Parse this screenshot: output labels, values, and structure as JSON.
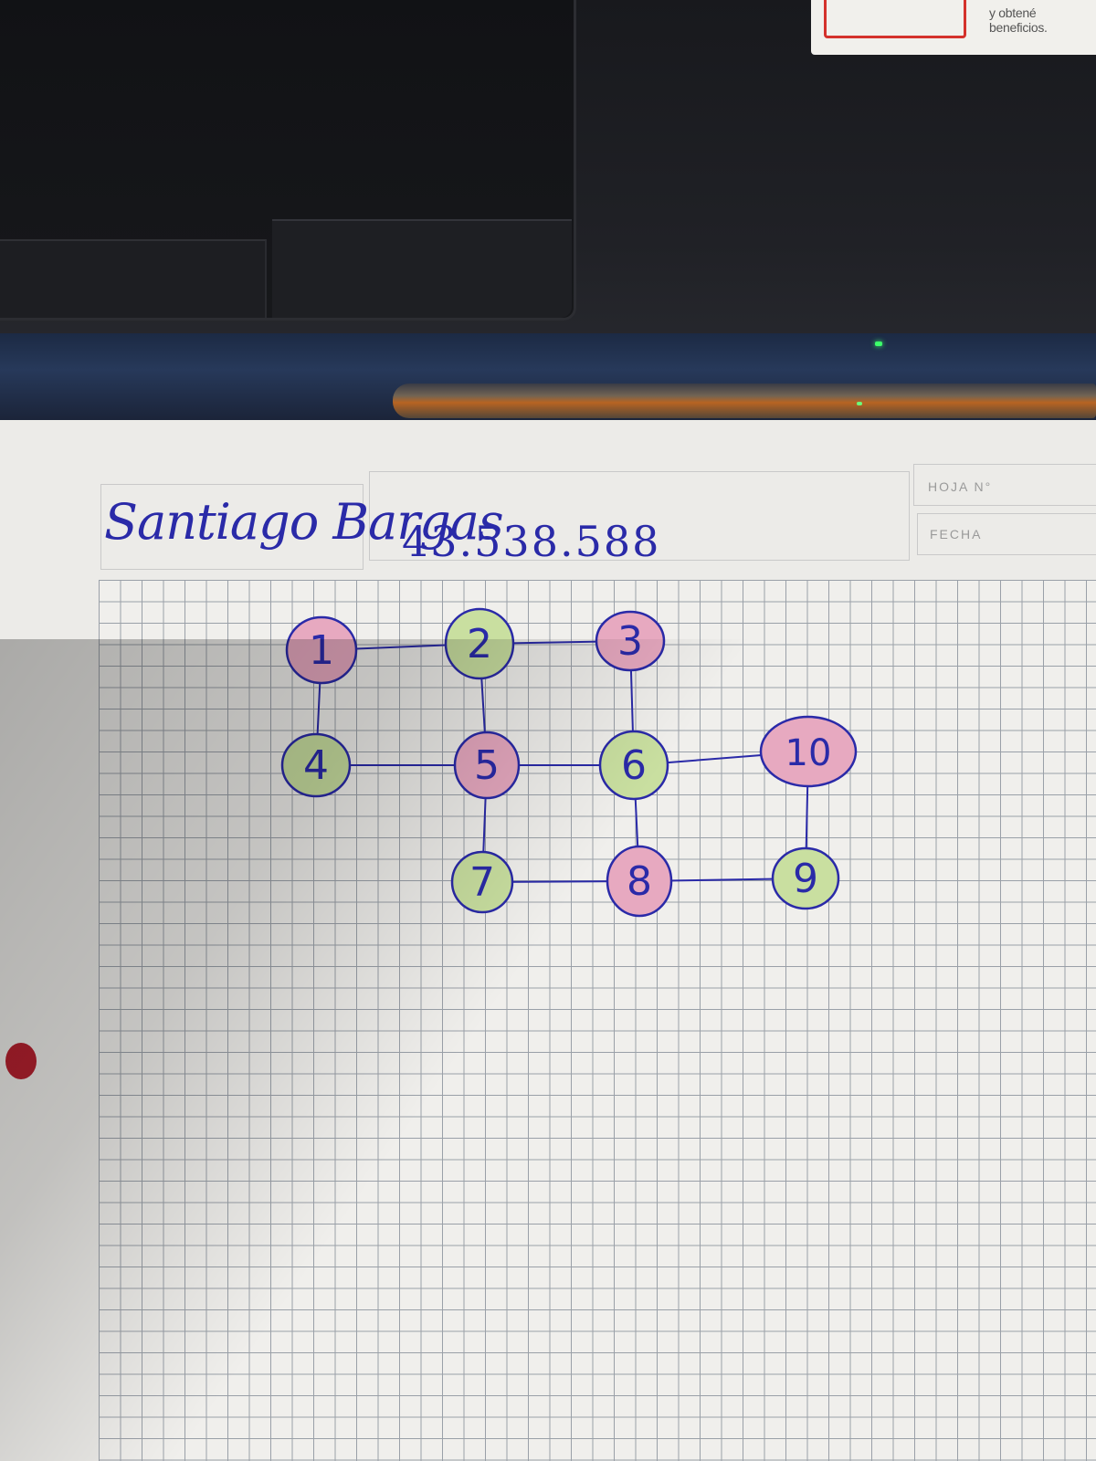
{
  "background_card": {
    "text": "y obtené beneficios."
  },
  "sheet": {
    "name": "Santiago Bargas",
    "id_number": "43.538.588",
    "labels": {
      "sheet_no": "HOJA N°",
      "date": "FECHA"
    }
  },
  "colors": {
    "ink": "#2a2aa8",
    "pink": "#e7a9c0",
    "green": "#c9dfa0"
  },
  "graph": {
    "nodes": [
      {
        "label": "1",
        "color": "pink"
      },
      {
        "label": "2",
        "color": "green"
      },
      {
        "label": "3",
        "color": "pink"
      },
      {
        "label": "4",
        "color": "green"
      },
      {
        "label": "5",
        "color": "pink"
      },
      {
        "label": "6",
        "color": "green"
      },
      {
        "label": "7",
        "color": "green"
      },
      {
        "label": "8",
        "color": "pink"
      },
      {
        "label": "9",
        "color": "green"
      },
      {
        "label": "10",
        "color": "pink"
      }
    ],
    "edges": [
      [
        "1",
        "2"
      ],
      [
        "2",
        "3"
      ],
      [
        "1",
        "4"
      ],
      [
        "2",
        "5"
      ],
      [
        "3",
        "6"
      ],
      [
        "4",
        "5"
      ],
      [
        "5",
        "6"
      ],
      [
        "6",
        "10"
      ],
      [
        "5",
        "7"
      ],
      [
        "6",
        "8"
      ],
      [
        "7",
        "8"
      ],
      [
        "8",
        "9"
      ],
      [
        "10",
        "9"
      ]
    ]
  }
}
